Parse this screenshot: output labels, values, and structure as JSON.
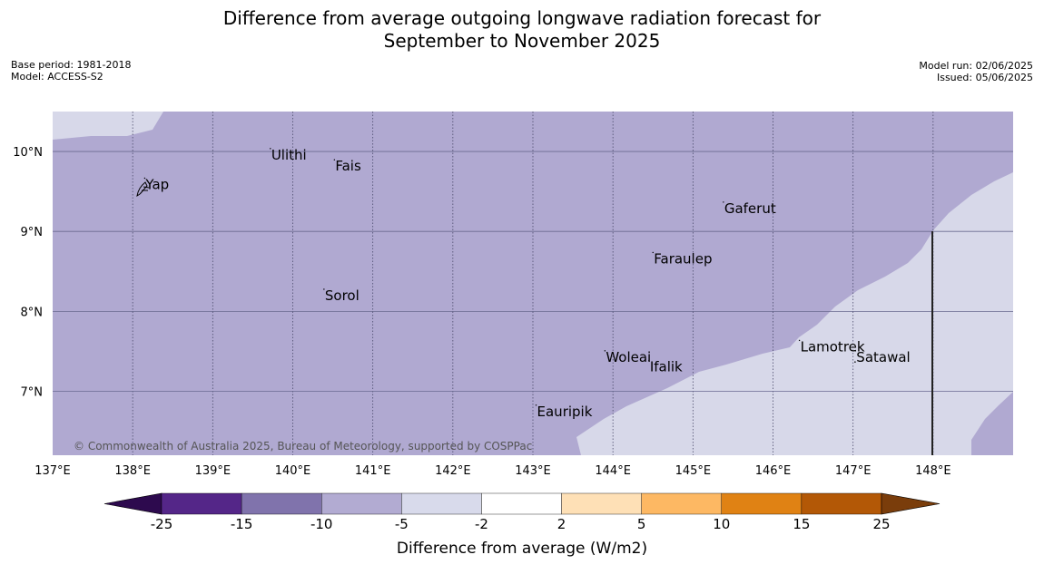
{
  "title": {
    "line1": "Difference from average outgoing longwave radiation forecast for",
    "line2": "September to November 2025"
  },
  "meta": {
    "base_period": "Base period: 1981-2018",
    "model": "Model: ACCESS-S2",
    "model_run": "Model run: 02/06/2025",
    "issued": "Issued: 05/06/2025"
  },
  "map": {
    "lon_range": [
      137,
      149
    ],
    "lat_range": [
      6.2,
      10.5
    ],
    "x_ticks": [
      {
        "value": 137,
        "label": "137°E"
      },
      {
        "value": 138,
        "label": "138°E"
      },
      {
        "value": 139,
        "label": "139°E"
      },
      {
        "value": 140,
        "label": "140°E"
      },
      {
        "value": 141,
        "label": "141°E"
      },
      {
        "value": 142,
        "label": "142°E"
      },
      {
        "value": 143,
        "label": "143°E"
      },
      {
        "value": 144,
        "label": "144°E"
      },
      {
        "value": 145,
        "label": "145°E"
      },
      {
        "value": 146,
        "label": "146°E"
      },
      {
        "value": 147,
        "label": "147°E"
      },
      {
        "value": 148,
        "label": "148°E"
      }
    ],
    "y_ticks": [
      {
        "value": 10,
        "label": "10°N"
      },
      {
        "value": 9,
        "label": "9°N"
      },
      {
        "value": 8,
        "label": "8°N"
      },
      {
        "value": 7,
        "label": "7°N"
      }
    ],
    "places": [
      {
        "name": "Yap",
        "lon": 138.15,
        "lat": 9.53
      },
      {
        "name": "Ulithi",
        "lon": 139.72,
        "lat": 9.9
      },
      {
        "name": "Fais",
        "lon": 140.52,
        "lat": 9.76
      },
      {
        "name": "Gaferut",
        "lon": 145.38,
        "lat": 9.23
      },
      {
        "name": "Faraulep",
        "lon": 144.5,
        "lat": 8.6
      },
      {
        "name": "Sorol",
        "lon": 140.39,
        "lat": 8.14
      },
      {
        "name": "Woleai",
        "lon": 143.9,
        "lat": 7.37
      },
      {
        "name": "Ifalik",
        "lon": 144.45,
        "lat": 7.25
      },
      {
        "name": "Lamotrek",
        "lon": 146.33,
        "lat": 7.5
      },
      {
        "name": "Satawal",
        "lon": 147.03,
        "lat": 7.37
      },
      {
        "name": "Eauripik",
        "lon": 143.04,
        "lat": 6.69
      }
    ],
    "colors": {
      "minus10_to_minus5": "#b0a9d1",
      "minus5_to_minus2": "#d7d8e9",
      "boundary_line": "#222222"
    },
    "copyright": "© Commonwealth of Australia 2025, Bureau of Meteorology, supported by COSPPac"
  },
  "legend": {
    "label": "Difference from average (W/m2)",
    "under_color": "#2d0a4e",
    "over_color": "#7a3d0b",
    "boundaries": [
      "-25",
      "-15",
      "-10",
      "-5",
      "-2",
      "2",
      "5",
      "10",
      "15",
      "25"
    ],
    "bins": [
      {
        "color": "#542688"
      },
      {
        "color": "#8073ac"
      },
      {
        "color": "#b2abd2"
      },
      {
        "color": "#d8daeb"
      },
      {
        "color": "#ffffff"
      },
      {
        "color": "#fee0b6"
      },
      {
        "color": "#fdb863"
      },
      {
        "color": "#e08214"
      },
      {
        "color": "#b35806"
      }
    ]
  }
}
